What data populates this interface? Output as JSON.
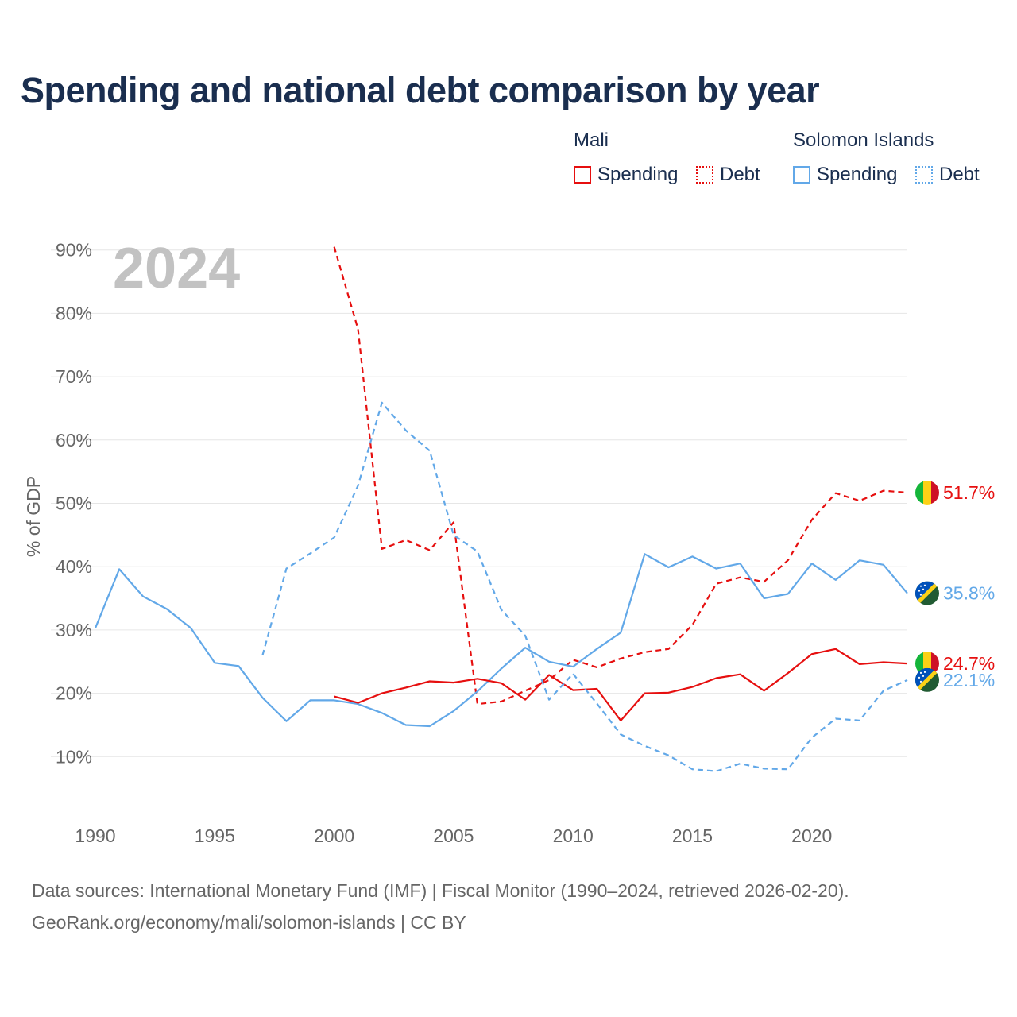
{
  "title": "Spending and national debt comparison by year",
  "legend": {
    "groups": [
      {
        "name": "Mali",
        "spending_label": "Spending",
        "debt_label": "Debt"
      },
      {
        "name": "Solomon Islands",
        "spending_label": "Spending",
        "debt_label": "Debt"
      }
    ]
  },
  "year_watermark": "2024",
  "footer": {
    "line1": "Data sources: International Monetary Fund (IMF) | Fiscal Monitor (1990–2024, retrieved 2026-02-20).",
    "line2": "GeoRank.org/economy/mali/solomon-islands | CC BY"
  },
  "colors": {
    "mali": "#e60f0f",
    "solomon": "#62a8e8",
    "title": "#1a2e4f",
    "grid": "#e6e6e6",
    "tick": "#666666"
  },
  "chart_data": {
    "type": "line",
    "ylabel": "% of GDP",
    "xlim": [
      1990,
      2024
    ],
    "ylim": [
      0,
      90
    ],
    "x_ticks": [
      1990,
      1995,
      2000,
      2005,
      2010,
      2015,
      2020
    ],
    "y_ticks": [
      {
        "value": 10,
        "label": "10%"
      },
      {
        "value": 20,
        "label": "20%"
      },
      {
        "value": 30,
        "label": "30%"
      },
      {
        "value": 40,
        "label": "40%"
      },
      {
        "value": 50,
        "label": "50%"
      },
      {
        "value": 60,
        "label": "60%"
      },
      {
        "value": 70,
        "label": "70%"
      },
      {
        "value": 80,
        "label": "80%"
      },
      {
        "value": 90,
        "label": "90%"
      }
    ],
    "series": [
      {
        "name": "Mali Debt",
        "country": "Mali",
        "color": "#e60f0f",
        "dashed": true,
        "end_label": "51.7%",
        "flag": "mali",
        "x": [
          2000,
          2001,
          2002,
          2003,
          2004,
          2005,
          2006,
          2007,
          2008,
          2009,
          2010,
          2011,
          2012,
          2013,
          2014,
          2015,
          2016,
          2017,
          2018,
          2019,
          2020,
          2021,
          2022,
          2023,
          2024
        ],
        "y": [
          90.5,
          77.5,
          42.8,
          44.2,
          42.6,
          47.0,
          18.3,
          18.7,
          20.4,
          22.1,
          25.3,
          24.1,
          25.5,
          26.5,
          27.0,
          30.8,
          37.3,
          38.3,
          37.6,
          41.0,
          47.4,
          51.6,
          50.4,
          52.0,
          51.7
        ]
      },
      {
        "name": "Solomon Islands Spending",
        "country": "Solomon Islands",
        "color": "#62a8e8",
        "dashed": false,
        "end_label": "35.8%",
        "flag": "solomon",
        "x": [
          1990,
          1991,
          1992,
          1993,
          1994,
          1995,
          1996,
          1997,
          1998,
          1999,
          2000,
          2001,
          2002,
          2003,
          2004,
          2005,
          2006,
          2007,
          2008,
          2009,
          2010,
          2011,
          2012,
          2013,
          2014,
          2015,
          2016,
          2017,
          2018,
          2019,
          2020,
          2021,
          2022,
          2023,
          2024
        ],
        "y": [
          30.3,
          39.6,
          35.3,
          33.3,
          30.3,
          24.8,
          24.3,
          19.3,
          15.6,
          18.9,
          18.9,
          18.3,
          16.9,
          15.0,
          14.8,
          17.2,
          20.3,
          23.9,
          27.2,
          25.0,
          24.2,
          27.0,
          29.6,
          42.0,
          39.9,
          41.6,
          39.7,
          40.5,
          35.0,
          35.7,
          40.5,
          37.9,
          41.0,
          40.3,
          35.8
        ]
      },
      {
        "name": "Mali Spending",
        "country": "Mali",
        "color": "#e60f0f",
        "dashed": false,
        "end_label": "24.7%",
        "flag": "mali",
        "x": [
          2000,
          2001,
          2002,
          2003,
          2004,
          2005,
          2006,
          2007,
          2008,
          2009,
          2010,
          2011,
          2012,
          2013,
          2014,
          2015,
          2016,
          2017,
          2018,
          2019,
          2020,
          2021,
          2022,
          2023,
          2024
        ],
        "y": [
          19.5,
          18.5,
          20.0,
          20.9,
          21.9,
          21.7,
          22.3,
          21.6,
          19.0,
          22.9,
          20.5,
          20.7,
          15.7,
          20.0,
          20.1,
          21.0,
          22.4,
          23.0,
          20.4,
          23.2,
          26.2,
          27.0,
          24.6,
          24.9,
          24.7
        ]
      },
      {
        "name": "Solomon Islands Debt",
        "country": "Solomon Islands",
        "color": "#62a8e8",
        "dashed": true,
        "end_label": "22.1%",
        "flag": "solomon",
        "x": [
          1997,
          1998,
          1999,
          2000,
          2001,
          2002,
          2003,
          2004,
          2005,
          2006,
          2007,
          2008,
          2009,
          2010,
          2011,
          2012,
          2013,
          2014,
          2015,
          2016,
          2017,
          2018,
          2019,
          2020,
          2021,
          2022,
          2023,
          2024
        ],
        "y": [
          26.0,
          39.7,
          42.1,
          44.6,
          52.8,
          65.9,
          61.5,
          58.3,
          45.0,
          42.4,
          33.2,
          29.1,
          19.0,
          23.1,
          18.4,
          13.5,
          11.7,
          10.2,
          8.0,
          7.7,
          8.9,
          8.1,
          8.0,
          13.0,
          16.0,
          15.7,
          20.4,
          22.1
        ]
      }
    ]
  }
}
